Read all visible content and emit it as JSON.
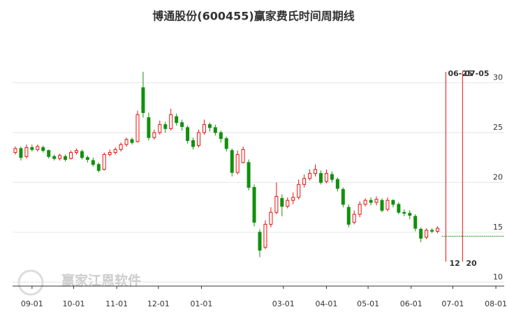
{
  "chart_data": {
    "type": "candlestick",
    "title": "博通股份(600455)赢家费氏时间周期线",
    "watermark": "赢家江恩软件",
    "up_color": "#e8120c",
    "down_color": "#12900e",
    "xlim": [
      -14,
      340
    ],
    "ylim": [
      9.6,
      35.5
    ],
    "yticks": [
      10,
      15,
      20,
      25,
      30
    ],
    "grid": true,
    "xticks": [
      {
        "value": 0,
        "label": "09-01"
      },
      {
        "value": 30,
        "label": "10-01"
      },
      {
        "value": 61,
        "label": "11-01"
      },
      {
        "value": 91,
        "label": "12-01"
      },
      {
        "value": 122,
        "label": "01-01"
      },
      {
        "value": 181,
        "label": "03-01"
      },
      {
        "value": 212,
        "label": "04-01"
      },
      {
        "value": 242,
        "label": "05-01"
      },
      {
        "value": 273,
        "label": "06-01"
      },
      {
        "value": 303,
        "label": "07-01"
      },
      {
        "value": 334,
        "label": "08-01"
      }
    ],
    "x": [
      -12,
      -8,
      -4,
      0,
      4,
      8,
      12,
      16,
      20,
      24,
      28,
      32,
      36,
      40,
      44,
      48,
      52,
      56,
      60,
      64,
      68,
      72,
      76,
      80,
      84,
      88,
      92,
      96,
      100,
      104,
      108,
      112,
      116,
      120,
      124,
      128,
      132,
      136,
      140,
      144,
      148,
      152,
      156,
      160,
      164,
      168,
      172,
      176,
      180,
      184,
      188,
      192,
      196,
      200,
      204,
      208,
      212,
      216,
      220,
      224,
      228,
      232,
      236,
      240,
      244,
      248,
      252,
      256,
      260,
      264,
      268,
      272,
      276,
      280,
      284,
      288,
      292
    ],
    "open": [
      23.0,
      23.4,
      22.6,
      23.5,
      23.3,
      23.5,
      23.2,
      22.6,
      22.4,
      22.6,
      22.4,
      23.0,
      23.1,
      22.5,
      22.2,
      21.8,
      21.3,
      22.8,
      23.0,
      23.3,
      23.8,
      24.3,
      24.1,
      29.5,
      26.5,
      24.5,
      25.0,
      25.8,
      25.4,
      26.6,
      26.0,
      25.5,
      24.2,
      23.7,
      25.0,
      25.8,
      25.5,
      25.0,
      24.4,
      23.2,
      21.0,
      22.0,
      22.0,
      19.5,
      15.0,
      13.5,
      15.8,
      17.0,
      18.4,
      17.6,
      18.2,
      18.5,
      19.8,
      20.4,
      20.9,
      20.9,
      20.1,
      20.8,
      20.3,
      19.3,
      17.5,
      16.0,
      16.8,
      17.8,
      18.2,
      18.0,
      18.2,
      17.3,
      18.2,
      17.8,
      17.0,
      16.9,
      16.6,
      15.3,
      14.5,
      15.2,
      15.1
    ],
    "close": [
      23.4,
      22.5,
      23.5,
      23.3,
      23.6,
      23.2,
      22.6,
      22.4,
      22.7,
      22.3,
      23.0,
      23.2,
      22.5,
      22.3,
      21.8,
      21.2,
      22.8,
      23.0,
      23.3,
      23.8,
      24.3,
      24.0,
      26.8,
      27.0,
      24.5,
      25.0,
      25.8,
      25.4,
      26.8,
      26.0,
      25.6,
      24.2,
      23.6,
      25.0,
      25.8,
      25.5,
      25.0,
      24.4,
      23.4,
      21.0,
      22.8,
      23.3,
      19.5,
      16.0,
      13.2,
      15.8,
      17.0,
      18.6,
      17.6,
      18.2,
      18.5,
      19.8,
      20.4,
      20.9,
      21.3,
      20.0,
      20.9,
      20.3,
      19.4,
      17.8,
      15.8,
      16.8,
      17.8,
      18.2,
      18.0,
      18.3,
      17.2,
      18.2,
      17.8,
      17.0,
      16.9,
      16.7,
      15.4,
      14.4,
      15.2,
      15.1,
      15.4
    ],
    "high": [
      23.6,
      23.6,
      23.8,
      23.8,
      23.8,
      23.7,
      23.3,
      22.8,
      22.9,
      22.8,
      23.2,
      23.4,
      23.3,
      22.7,
      22.5,
      22.0,
      23.0,
      23.3,
      23.5,
      24.0,
      24.5,
      24.5,
      27.2,
      31.1,
      27.0,
      25.3,
      26.2,
      26.1,
      27.4,
      26.9,
      26.3,
      25.7,
      24.5,
      25.3,
      26.3,
      26.0,
      25.8,
      25.2,
      24.6,
      23.4,
      23.2,
      23.6,
      22.3,
      19.8,
      15.3,
      16.2,
      17.5,
      20.0,
      18.8,
      18.5,
      19.0,
      20.3,
      20.8,
      21.3,
      21.8,
      21.2,
      21.3,
      21.1,
      20.5,
      19.5,
      17.8,
      17.2,
      18.1,
      18.4,
      18.5,
      18.6,
      18.4,
      18.5,
      18.3,
      18.0,
      17.3,
      17.2,
      16.8,
      15.5,
      15.4,
      15.4,
      15.6
    ],
    "low": [
      22.8,
      22.2,
      22.4,
      23.1,
      23.1,
      23.0,
      22.4,
      22.2,
      22.2,
      22.1,
      22.3,
      22.8,
      22.3,
      22.0,
      21.6,
      21.0,
      21.2,
      22.6,
      22.8,
      23.1,
      23.6,
      23.8,
      24.0,
      26.5,
      24.2,
      24.3,
      24.8,
      25.0,
      25.2,
      25.7,
      25.2,
      23.9,
      23.3,
      23.5,
      24.8,
      25.1,
      24.7,
      24.0,
      23.1,
      20.6,
      20.8,
      21.9,
      19.2,
      15.6,
      12.5,
      13.3,
      15.5,
      16.8,
      16.6,
      17.4,
      17.8,
      18.3,
      19.5,
      20.2,
      20.6,
      19.8,
      19.9,
      20.0,
      19.1,
      17.5,
      15.5,
      15.8,
      16.5,
      17.6,
      17.7,
      17.7,
      17.0,
      17.1,
      17.5,
      16.8,
      16.6,
      16.3,
      15.1,
      14.0,
      14.3,
      14.9,
      14.9
    ],
    "hline": {
      "value": 14.6,
      "from": 295,
      "color": "#12900e"
    },
    "cycle_color": "#e8120c",
    "cycle_lines": [
      {
        "x": 298,
        "label": "06-25",
        "count": 12
      },
      {
        "x": 310,
        "label": "07-05",
        "count": 20
      }
    ]
  }
}
